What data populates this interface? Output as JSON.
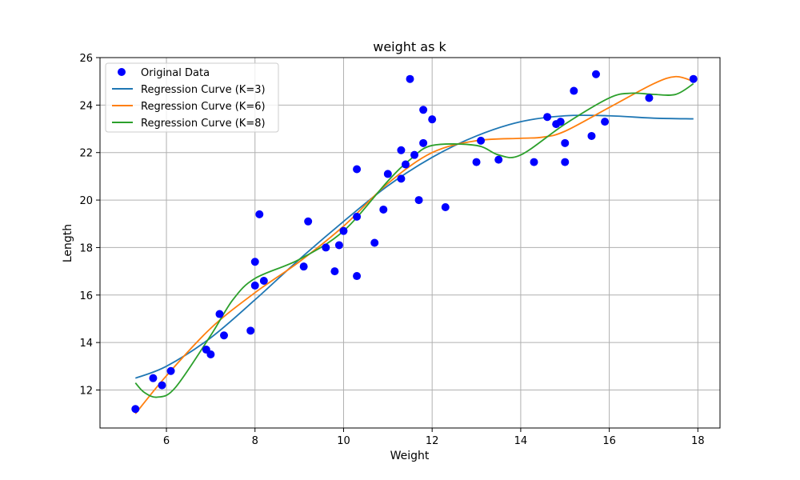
{
  "chart_data": {
    "type": "scatter",
    "title": "weight as k",
    "xlabel": "Weight",
    "ylabel": "Length",
    "xlim": [
      4.5,
      18.5
    ],
    "ylim": [
      10.4,
      26
    ],
    "xticks": [
      6,
      8,
      10,
      12,
      14,
      16,
      18
    ],
    "yticks": [
      12,
      14,
      16,
      18,
      20,
      22,
      24,
      26
    ],
    "grid": true,
    "legend_position": "top-left",
    "points": {
      "name": "Original Data",
      "color": "#0000ff",
      "x": [
        5.3,
        5.7,
        5.9,
        6.1,
        6.9,
        7.0,
        7.2,
        7.3,
        7.9,
        8.0,
        8.0,
        8.1,
        8.2,
        9.1,
        9.2,
        9.6,
        9.8,
        9.9,
        10.0,
        10.3,
        10.3,
        10.3,
        10.7,
        10.9,
        11.0,
        11.3,
        11.3,
        11.4,
        11.5,
        11.6,
        11.7,
        11.8,
        11.8,
        12.0,
        12.3,
        13.0,
        13.1,
        13.5,
        14.3,
        14.6,
        14.8,
        14.9,
        15.0,
        15.0,
        15.2,
        15.6,
        15.7,
        15.9,
        16.9,
        17.9
      ],
      "y": [
        11.2,
        12.5,
        12.2,
        12.8,
        13.7,
        13.5,
        15.2,
        14.3,
        14.5,
        17.4,
        16.4,
        19.4,
        16.6,
        17.2,
        19.1,
        18.0,
        17.0,
        18.1,
        18.7,
        21.3,
        19.3,
        16.8,
        18.2,
        19.6,
        21.1,
        22.1,
        20.9,
        21.5,
        25.1,
        21.9,
        20.0,
        23.8,
        22.4,
        23.4,
        19.7,
        21.6,
        22.5,
        21.7,
        21.6,
        23.5,
        23.2,
        23.3,
        22.4,
        21.6,
        24.6,
        22.7,
        25.3,
        23.3,
        24.3,
        25.1
      ]
    },
    "series": [
      {
        "name": "Regression Curve (K=3)",
        "color": "#1f77b4",
        "x": [
          5.3,
          6,
          7,
          8,
          9,
          10,
          11,
          12,
          13,
          14,
          15,
          16,
          17,
          17.9
        ],
        "y": [
          12.5,
          13.0,
          14.2,
          15.8,
          17.5,
          19.1,
          20.6,
          21.8,
          22.7,
          23.3,
          23.55,
          23.55,
          23.45,
          23.42
        ]
      },
      {
        "name": "Regression Curve (K=6)",
        "color": "#ff7f0e",
        "x": [
          5.3,
          6,
          7,
          8,
          9,
          10,
          11,
          12,
          13,
          14,
          14.5,
          15,
          16,
          17,
          17.5,
          17.9
        ],
        "y": [
          11.0,
          12.6,
          14.6,
          16.1,
          17.4,
          18.9,
          20.7,
          22.0,
          22.5,
          22.6,
          22.65,
          22.9,
          23.9,
          24.9,
          25.2,
          25.0
        ]
      },
      {
        "name": "Regression Curve (K=8)",
        "color": "#2ca02c",
        "x": [
          5.3,
          5.5,
          5.8,
          6.2,
          7.0,
          7.5,
          8.0,
          9.0,
          10.0,
          11.0,
          11.5,
          12.0,
          13.0,
          13.5,
          14.0,
          15.0,
          16.0,
          16.5,
          17.0,
          17.5,
          17.9
        ],
        "y": [
          12.3,
          11.9,
          11.7,
          12.1,
          14.3,
          15.8,
          16.7,
          17.5,
          18.7,
          20.8,
          21.7,
          22.3,
          22.3,
          21.9,
          21.9,
          23.2,
          24.3,
          24.5,
          24.45,
          24.45,
          24.9
        ]
      }
    ]
  }
}
